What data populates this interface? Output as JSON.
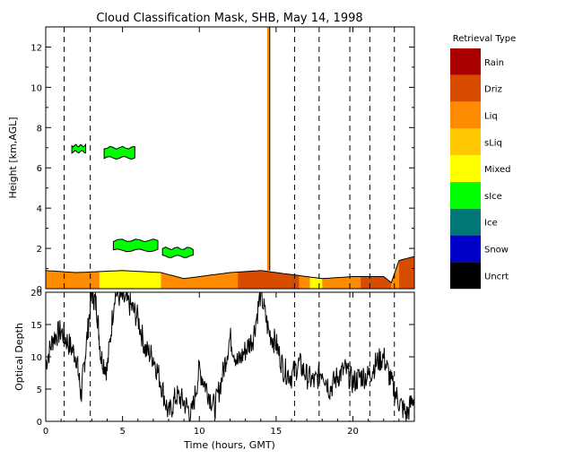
{
  "chart_data": [
    {
      "type": "heatmap",
      "title": "Cloud Classification Mask, SHB, May 14, 1998",
      "xlabel": "",
      "ylabel": "Height [km,AGL]",
      "xlim": [
        0,
        24
      ],
      "ylim": [
        0,
        13
      ],
      "y_ticks": [
        0,
        2,
        4,
        6,
        8,
        10,
        12
      ],
      "x_ticks": [
        0,
        5,
        10,
        15,
        20
      ],
      "legend": {
        "title": "Retrieval Type",
        "placement": "right",
        "entries": [
          {
            "label": "Rain",
            "color": "#a80000"
          },
          {
            "label": "Driz",
            "color": "#d84c00"
          },
          {
            "label": "Liq",
            "color": "#ff8c00"
          },
          {
            "label": "sLiq",
            "color": "#ffc800"
          },
          {
            "label": "Mixed",
            "color": "#ffff00"
          },
          {
            "label": "sIce",
            "color": "#00ff00"
          },
          {
            "label": "Ice",
            "color": "#007878"
          },
          {
            "label": "Snow",
            "color": "#0000c8"
          },
          {
            "label": "Uncrt",
            "color": "#000000"
          }
        ]
      },
      "dashed_vertical_lines_hours": [
        1.2,
        2.9,
        16.2,
        17.8,
        19.8,
        21.1,
        22.7
      ],
      "low_cloud_layer": {
        "top_height_km": [
          [
            0,
            0.9
          ],
          [
            2,
            0.8
          ],
          [
            5,
            0.9
          ],
          [
            7.5,
            0.8
          ],
          [
            9,
            0.5
          ],
          [
            12,
            0.8
          ],
          [
            14,
            0.9
          ],
          [
            16,
            0.7
          ],
          [
            18,
            0.5
          ],
          [
            20,
            0.6
          ],
          [
            22,
            0.6
          ],
          [
            22.5,
            0.3
          ],
          [
            23,
            1.4
          ],
          [
            24,
            1.6
          ]
        ],
        "segments": [
          {
            "start_hour": 0,
            "end_hour": 3.5,
            "type": "Liq"
          },
          {
            "start_hour": 3.5,
            "end_hour": 7.5,
            "type": "Mixed"
          },
          {
            "start_hour": 7.5,
            "end_hour": 12.5,
            "type": "Liq"
          },
          {
            "start_hour": 12.5,
            "end_hour": 16.5,
            "type": "Driz"
          },
          {
            "start_hour": 16.5,
            "end_hour": 17.2,
            "type": "Liq"
          },
          {
            "start_hour": 17.2,
            "end_hour": 18.0,
            "type": "Mixed"
          },
          {
            "start_hour": 18.0,
            "end_hour": 20.5,
            "type": "Liq"
          },
          {
            "start_hour": 20.5,
            "end_hour": 22.5,
            "type": "Driz"
          },
          {
            "start_hour": 22.5,
            "end_hour": 23.0,
            "type": "Liq"
          },
          {
            "start_hour": 23.0,
            "end_hour": 24.0,
            "type": "Driz"
          }
        ]
      },
      "ice_patches": [
        {
          "start_hour": 1.7,
          "end_hour": 2.6,
          "bottom_km": 6.8,
          "top_km": 7.1,
          "type": "sIce"
        },
        {
          "start_hour": 3.8,
          "end_hour": 5.8,
          "bottom_km": 6.5,
          "top_km": 7.0,
          "type": "sIce"
        },
        {
          "start_hour": 4.4,
          "end_hour": 7.3,
          "bottom_km": 1.9,
          "top_km": 2.4,
          "type": "sIce"
        },
        {
          "start_hour": 7.6,
          "end_hour": 9.6,
          "bottom_km": 1.6,
          "top_km": 2.0,
          "type": "sIce"
        }
      ],
      "spike": {
        "hour": 14.5,
        "bottom_km": 0.9,
        "top_km": 13
      }
    },
    {
      "type": "line",
      "title": "",
      "xlabel": "Time (hours, GMT)",
      "ylabel": "Optical Depth",
      "xlim": [
        0,
        24
      ],
      "ylim": [
        0,
        20
      ],
      "y_ticks": [
        0,
        5,
        10,
        15,
        20
      ],
      "x_ticks": [
        0,
        5,
        10,
        15,
        20
      ],
      "dashed_vertical_lines_hours": [
        1.2,
        2.9,
        16.2,
        17.8,
        19.8,
        21.1,
        22.7
      ],
      "series": [
        {
          "x": [
            0,
            0.5,
            1,
            1.5,
            2,
            2.3,
            2.6,
            3,
            3.3,
            3.6,
            4,
            4.5,
            5,
            5.5,
            6,
            6.5,
            7,
            7.5,
            8,
            8.5,
            9,
            9.5,
            10,
            10.5,
            11,
            11.5,
            12,
            12.5,
            13,
            13.5,
            14,
            14.5,
            15,
            15.5,
            16,
            16.5,
            17,
            17.5,
            18,
            18.5,
            19,
            19.5,
            20,
            20.5,
            21,
            21.5,
            22,
            22.5,
            23,
            23.5,
            24
          ],
          "values": [
            9,
            13,
            14,
            12,
            10,
            4,
            11,
            20,
            18,
            10,
            8,
            20,
            19,
            18,
            16,
            11,
            10,
            6,
            1,
            4,
            3,
            1,
            8,
            5,
            2,
            7,
            13,
            9,
            11,
            13,
            20,
            14,
            12,
            8,
            7,
            9,
            7,
            6,
            8,
            5,
            7,
            8,
            6,
            7,
            7,
            9,
            10,
            6,
            3,
            1,
            4
          ]
        }
      ]
    }
  ]
}
